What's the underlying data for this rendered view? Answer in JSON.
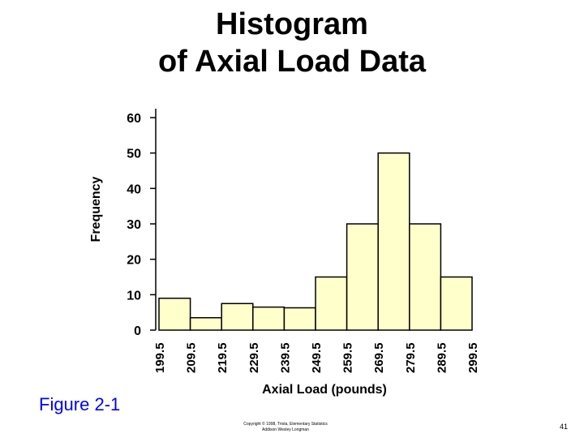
{
  "slide": {
    "title_line1": "Histogram",
    "title_line2": "of Axial Load Data",
    "figure_label": "Figure 2-1",
    "copyright_line1": "Copyright © 1998, Triola, Elementary Statistics",
    "copyright_line2": "Addison Wesley Longman",
    "slide_number": "41"
  },
  "colors": {
    "bar_fill": "#ffffcc",
    "figure_label": "#0000ff"
  },
  "chart_data": {
    "type": "bar",
    "title": "",
    "xlabel": "Axial Load (pounds)",
    "ylabel": "Frequency",
    "boundaries": [
      "199.5",
      "209.5",
      "219.5",
      "229.5",
      "239.5",
      "249.5",
      "259.5",
      "269.5",
      "279.5",
      "289.5",
      "299.5"
    ],
    "values": [
      9,
      3.5,
      7.5,
      6.5,
      6.3,
      15,
      30,
      50,
      30,
      15
    ],
    "yticks": [
      0,
      10,
      20,
      30,
      40,
      50,
      60
    ],
    "ylim": [
      0,
      60
    ],
    "grid": false
  }
}
